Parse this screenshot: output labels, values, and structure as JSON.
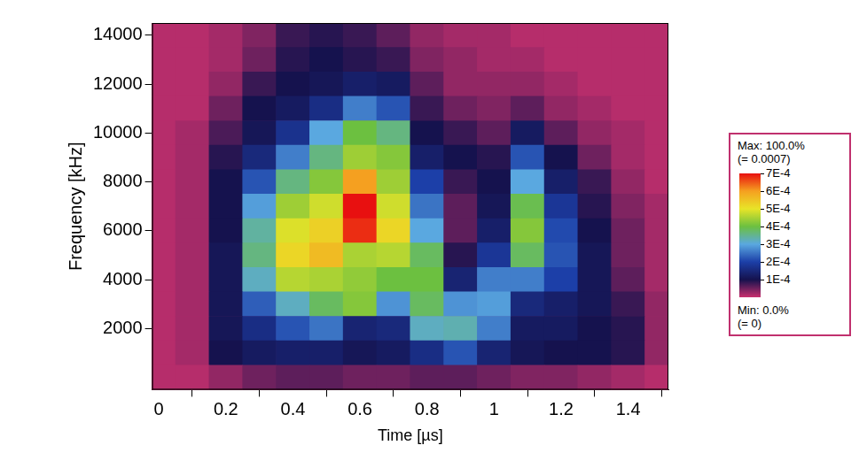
{
  "chart_data": {
    "type": "heatmap",
    "x_label": "Time [µs]",
    "y_label": "Frequency [kHz]",
    "x": [
      0,
      0.1,
      0.2,
      0.3,
      0.4,
      0.5,
      0.6,
      0.7,
      0.8,
      0.9,
      1.0,
      1.1,
      1.2,
      1.3,
      1.4,
      1.5
    ],
    "y": [
      0,
      1000,
      2000,
      3000,
      4000,
      5000,
      6000,
      7000,
      8000,
      9000,
      10000,
      11000,
      12000,
      13000,
      14000
    ],
    "cells": [
      [
        1e-05,
        1e-05,
        3e-05,
        5e-05,
        6e-05,
        6e-05,
        5e-05,
        5e-05,
        6e-05,
        6e-05,
        5e-05,
        4e-05,
        4e-05,
        3e-05,
        2e-05,
        1e-05
      ],
      [
        1e-05,
        2e-05,
        0.0001,
        0.00012,
        0.00013,
        0.00013,
        0.00011,
        0.00012,
        0.00016,
        0.00022,
        0.00014,
        0.00011,
        0.0001,
        0.0001,
        9e-05,
        3e-05
      ],
      [
        1e-05,
        2e-05,
        0.00011,
        0.00016,
        0.00022,
        0.00025,
        0.00014,
        0.00015,
        0.00032,
        0.00033,
        0.00026,
        0.00012,
        0.00012,
        0.0001,
        9e-05,
        3e-05
      ],
      [
        1e-05,
        2e-05,
        0.00011,
        0.00023,
        0.00032,
        0.00038,
        0.00042,
        0.00028,
        0.00038,
        0.00028,
        0.00029,
        0.00015,
        0.00013,
        0.00011,
        8e-05,
        3e-05
      ],
      [
        1e-05,
        2e-05,
        0.00011,
        0.00032,
        0.00046,
        0.00045,
        0.00043,
        0.0004,
        0.0004,
        0.00014,
        0.00026,
        0.00026,
        0.0002,
        0.00011,
        6e-05,
        2e-05
      ],
      [
        1e-05,
        2e-05,
        0.00011,
        0.00036,
        0.00052,
        0.00056,
        0.00045,
        0.00046,
        0.00038,
        9e-05,
        0.00018,
        0.00038,
        0.00022,
        0.00011,
        5e-05,
        2e-05
      ],
      [
        1e-05,
        2e-05,
        0.0001,
        0.00034,
        0.00049,
        0.00053,
        0.00068,
        0.00052,
        0.0003,
        6e-05,
        0.00013,
        0.00042,
        0.00021,
        0.0001,
        5e-05,
        2e-05
      ],
      [
        1e-05,
        2e-05,
        0.0001,
        0.00029,
        0.00044,
        0.00048,
        0.0007,
        0.00048,
        0.00025,
        6e-05,
        0.00011,
        0.00039,
        0.00018,
        9e-05,
        4e-05,
        2e-05
      ],
      [
        1e-05,
        2e-05,
        0.0001,
        0.00022,
        0.00036,
        0.00042,
        0.0006,
        0.00044,
        0.0002,
        8e-05,
        0.0001,
        0.0003,
        0.00013,
        8e-05,
        3e-05,
        1e-05
      ],
      [
        1e-05,
        2e-05,
        9e-05,
        0.00015,
        0.00026,
        0.00036,
        0.00044,
        0.00042,
        0.00013,
        0.0001,
        9e-05,
        0.00022,
        0.0001,
        5e-05,
        2e-05,
        1e-05
      ],
      [
        1e-05,
        2e-05,
        7e-05,
        0.00011,
        0.00017,
        0.0003,
        0.0004,
        0.00036,
        0.0001,
        8e-05,
        6e-05,
        0.00012,
        6e-05,
        3e-05,
        2e-05,
        1e-05
      ],
      [
        1e-05,
        1e-05,
        5e-05,
        0.0001,
        0.00012,
        0.00016,
        0.00026,
        0.00022,
        8e-05,
        5e-05,
        4e-05,
        6e-05,
        3e-05,
        2e-05,
        1e-05,
        1e-05
      ],
      [
        1e-05,
        1e-05,
        3e-05,
        8e-05,
        0.0001,
        0.00011,
        0.00013,
        0.00012,
        6e-05,
        3e-05,
        3e-05,
        3e-05,
        2e-05,
        1e-05,
        1e-05,
        1e-05
      ],
      [
        1e-05,
        1e-05,
        2e-05,
        5e-05,
        9e-05,
        0.0001,
        9e-05,
        8e-05,
        4e-05,
        3e-05,
        2e-05,
        2e-05,
        1e-05,
        1e-05,
        1e-05,
        1e-05
      ],
      [
        1e-05,
        1e-05,
        2e-05,
        4e-05,
        8e-05,
        9e-05,
        8e-05,
        6e-05,
        3e-05,
        2e-05,
        2e-05,
        1e-05,
        1e-05,
        1e-05,
        1e-05,
        1e-05
      ]
    ],
    "xlim": [
      -0.02,
      1.52
    ],
    "ylim": [
      -500,
      14500
    ],
    "xticks": [
      0,
      0.2,
      0.4,
      0.6,
      0.8,
      1,
      1.2,
      1.4
    ],
    "yticks": [
      2000,
      4000,
      6000,
      8000,
      10000,
      12000,
      14000
    ],
    "grid": false,
    "colorbar": {
      "range": [
        0,
        0.0007
      ],
      "ticks": [
        {
          "value": 0.0007,
          "label": "7E-4"
        },
        {
          "value": 0.0006,
          "label": "6E-4"
        },
        {
          "value": 0.0005,
          "label": "5E-4"
        },
        {
          "value": 0.0004,
          "label": "4E-4"
        },
        {
          "value": 0.0003,
          "label": "3E-4"
        },
        {
          "value": 0.0002,
          "label": "2E-4"
        },
        {
          "value": 0.0001,
          "label": "1E-4"
        }
      ],
      "max_label": "Max: 100.0%",
      "max_value_label": "(= 0.0007)",
      "min_label": "Min: 0.0%",
      "min_value_label": "(= 0)"
    }
  }
}
